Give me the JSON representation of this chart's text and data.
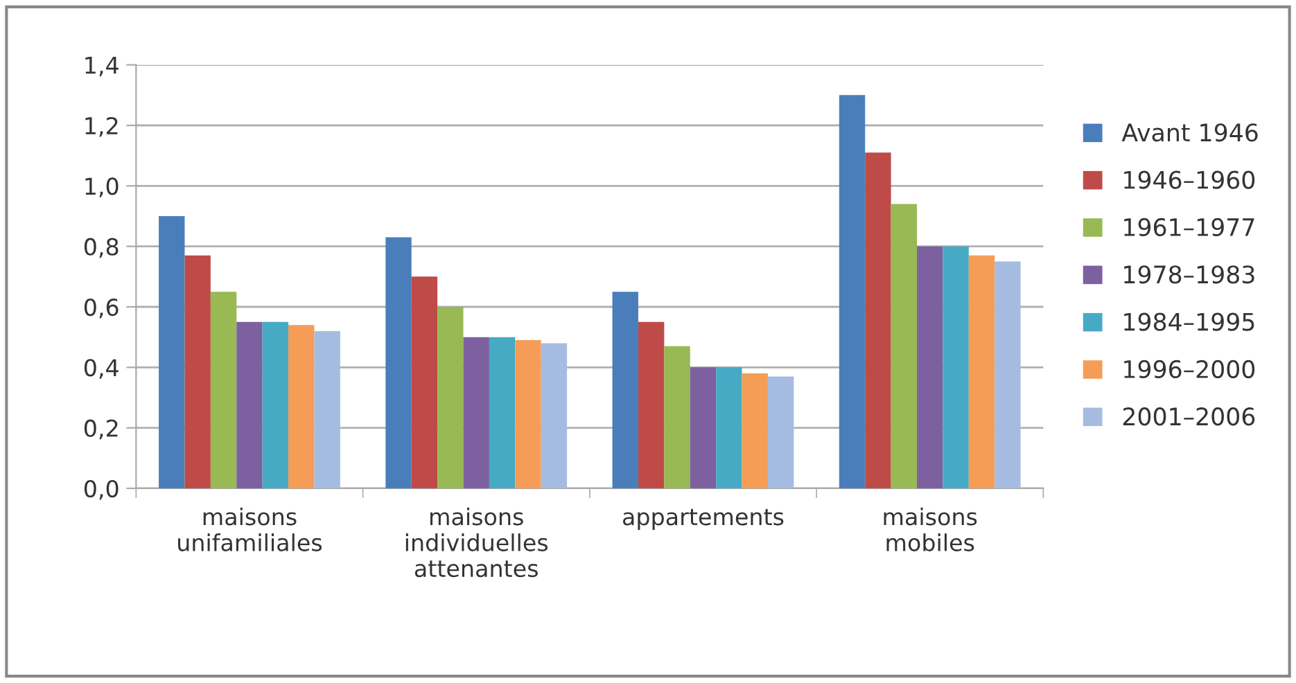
{
  "chart_data": {
    "type": "bar",
    "categories": [
      "maisons\nunifamiliales",
      "maisons\nindividuelles\nattenantes",
      "appartements",
      "maisons\nmobiles"
    ],
    "series": [
      {
        "name": "Avant 1946",
        "color": "#4a7ebb",
        "values": [
          0.9,
          0.83,
          0.65,
          1.3
        ]
      },
      {
        "name": "1946–1960",
        "color": "#be4b48",
        "values": [
          0.77,
          0.7,
          0.55,
          1.11
        ]
      },
      {
        "name": "1961–1977",
        "color": "#98b954",
        "values": [
          0.65,
          0.6,
          0.47,
          0.94
        ]
      },
      {
        "name": "1978–1983",
        "color": "#7d60a0",
        "values": [
          0.55,
          0.5,
          0.4,
          0.8
        ]
      },
      {
        "name": "1984–1995",
        "color": "#46aac5",
        "values": [
          0.55,
          0.5,
          0.4,
          0.8
        ]
      },
      {
        "name": "1996–2000",
        "color": "#f59d56",
        "values": [
          0.54,
          0.49,
          0.38,
          0.77
        ]
      },
      {
        "name": "2001–2006",
        "color": "#a5bce0",
        "values": [
          0.52,
          0.48,
          0.37,
          0.75
        ]
      }
    ],
    "ylim": [
      0,
      1.4
    ],
    "yticks": [
      {
        "value": 0,
        "label": "0,0"
      },
      {
        "value": 0.2,
        "label": "0,2"
      },
      {
        "value": 0.4,
        "label": "0,4"
      },
      {
        "value": 0.6,
        "label": "0,6"
      },
      {
        "value": 0.8,
        "label": "0,8"
      },
      {
        "value": 1.0,
        "label": "1,0"
      },
      {
        "value": 1.2,
        "label": "1,2"
      },
      {
        "value": 1.4,
        "label": "1,4"
      }
    ],
    "grid": "y",
    "legend": "right"
  }
}
